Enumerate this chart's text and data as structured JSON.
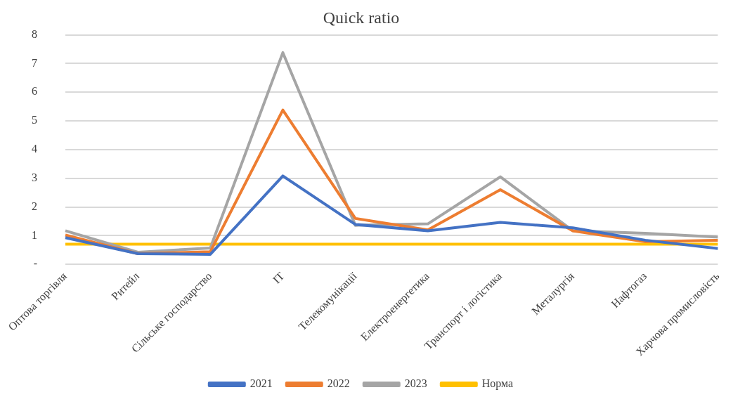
{
  "chart_data": {
    "type": "line",
    "title": "Quick ratio",
    "categories": [
      "Оптова торгівля",
      "Ритейл",
      "Сільське господарство",
      "IT",
      "Телекомунікації",
      "Електроенергетика",
      "Транспорт і логістика",
      "Металургія",
      "Нафтогаз",
      "Харчова промисловість"
    ],
    "series": [
      {
        "name": "2021",
        "color": "#4472c4",
        "values": [
          0.93,
          0.37,
          0.35,
          3.08,
          1.39,
          1.17,
          1.46,
          1.27,
          0.84,
          0.55
        ]
      },
      {
        "name": "2022",
        "color": "#ed7d31",
        "values": [
          1.02,
          0.37,
          0.44,
          5.38,
          1.6,
          1.2,
          2.6,
          1.17,
          0.79,
          0.84
        ]
      },
      {
        "name": "2023",
        "color": "#a5a5a5",
        "values": [
          1.17,
          0.42,
          0.57,
          7.38,
          1.36,
          1.41,
          3.05,
          1.17,
          1.08,
          0.95
        ]
      },
      {
        "name": "Норма",
        "color": "#ffc000",
        "values": [
          0.7,
          0.7,
          0.7,
          0.7,
          0.7,
          0.7,
          0.7,
          0.7,
          0.7,
          0.7
        ]
      }
    ],
    "ylim": [
      0,
      8
    ],
    "yticks": [
      {
        "value": 0,
        "label": "-"
      },
      1,
      2,
      3,
      4,
      5,
      6,
      7,
      8
    ],
    "grid": "y",
    "legend": "bottom",
    "marker": "none",
    "line_style": "solid"
  }
}
